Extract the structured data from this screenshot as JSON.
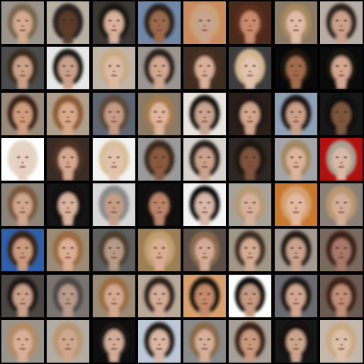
{
  "grid": {
    "rows": 8,
    "cols": 8,
    "background": "#000000",
    "tiles": [
      {
        "bg": "#9a948c",
        "hair": "#7a6650",
        "skin": "#d2a98e"
      },
      {
        "bg": "#b9b0a4",
        "hair": "#2a2420",
        "skin": "#5a3a2a"
      },
      {
        "bg": "#3a3634",
        "hair": "#161210",
        "skin": "#d6b09a"
      },
      {
        "bg": "#6f88a8",
        "hair": "#2a221c",
        "skin": "#9a6a4e"
      },
      {
        "bg": "#c98a5e",
        "hair": "#c9a27a",
        "skin": "#c7a28c"
      },
      {
        "bg": "#4a2a1c",
        "hair": "#5a2e1a",
        "skin": "#c98a6c"
      },
      {
        "bg": "#8a7a66",
        "hair": "#a8885e",
        "skin": "#e0bca6"
      },
      {
        "bg": "#b7ada4",
        "hair": "#2e241c",
        "skin": "#c9a08a"
      },
      {
        "bg": "#4b4b4b",
        "hair": "#3a2a1e",
        "skin": "#c9a088"
      },
      {
        "bg": "#e7e7e7",
        "hair": "#1f1b18",
        "skin": "#caa08a"
      },
      {
        "bg": "#bfb4a6",
        "hair": "#c7ab84",
        "skin": "#ddb9a3"
      },
      {
        "bg": "#9a9590",
        "hair": "#2a221e",
        "skin": "#d2a790"
      },
      {
        "bg": "#3d2c22",
        "hair": "#4a2e1e",
        "skin": "#d7ae98"
      },
      {
        "bg": "#3c3c3c",
        "hair": "#d2b690",
        "skin": "#e2c1ad"
      },
      {
        "bg": "#080808",
        "hair": "#1a1410",
        "skin": "#a06a4e"
      },
      {
        "bg": "#0b0b0b",
        "hair": "#18120e",
        "skin": "#d3a690"
      },
      {
        "bg": "#9a8a7a",
        "hair": "#3a2418",
        "skin": "#cf9c7e"
      },
      {
        "bg": "#b0a08c",
        "hair": "#8e5a34",
        "skin": "#d6a988"
      },
      {
        "bg": "#5e6470",
        "hair": "#5a4a38",
        "skin": "#c59a84"
      },
      {
        "bg": "#8a7a66",
        "hair": "#a27a4e",
        "skin": "#ddb39a"
      },
      {
        "bg": "#e9e4de",
        "hair": "#161210",
        "skin": "#c9a38f"
      },
      {
        "bg": "#2a1e1a",
        "hair": "#221812",
        "skin": "#d1a48c"
      },
      {
        "bg": "#8ea0b4",
        "hair": "#1e1814",
        "skin": "#c99f87"
      },
      {
        "bg": "#161616",
        "hair": "#0f0d0c",
        "skin": "#7c553c"
      },
      {
        "bg": "#ffffff",
        "hair": "#e3d6c4",
        "skin": "#e7d0c2"
      },
      {
        "bg": "#3a2c24",
        "hair": "#4e3020",
        "skin": "#d4a78f"
      },
      {
        "bg": "#f2f2f2",
        "hair": "#d7c09a",
        "skin": "#e3c2ad"
      },
      {
        "bg": "#9a9a9a",
        "hair": "#3a2a1e",
        "skin": "#8a5a40"
      },
      {
        "bg": "#d8d2cc",
        "hair": "#2a221c",
        "skin": "#c9a18c"
      },
      {
        "bg": "#2e2622",
        "hair": "#1c1510",
        "skin": "#7d523c"
      },
      {
        "bg": "#a4a4a8",
        "hair": "#a2885e",
        "skin": "#d9b39b"
      },
      {
        "bg": "#b01010",
        "hair": "#a8a08e",
        "skin": "#d9b8a6"
      },
      {
        "bg": "#8d8479",
        "hair": "#7a5a3e",
        "skin": "#cfa58c"
      },
      {
        "bg": "#141414",
        "hair": "#120f0e",
        "skin": "#d8b29e"
      },
      {
        "bg": "#d7d7d7",
        "hair": "#8a8a8a",
        "skin": "#c49c86"
      },
      {
        "bg": "#0f0f0f",
        "hair": "#140f0c",
        "skin": "#b9846a"
      },
      {
        "bg": "#f4f4f4",
        "hair": "#0d0b0a",
        "skin": "#d7b7a7"
      },
      {
        "bg": "#a8a199",
        "hair": "#b59a74",
        "skin": "#d7b09a"
      },
      {
        "bg": "#c8782e",
        "hair": "#d4a072",
        "skin": "#e2b89e"
      },
      {
        "bg": "#8a8076",
        "hair": "#b8966e",
        "skin": "#d3ad97"
      },
      {
        "bg": "#2e5fa8",
        "hair": "#3a2418",
        "skin": "#c99a7e"
      },
      {
        "bg": "#9a8a76",
        "hair": "#9a6a40",
        "skin": "#dbad92"
      },
      {
        "bg": "#5e5e5e",
        "hair": "#4e3e2e",
        "skin": "#b69a86"
      },
      {
        "bg": "#9e7e56",
        "hair": "#c0a070",
        "skin": "#d9ae90"
      },
      {
        "bg": "#5a4e46",
        "hair": "#8a6a4e",
        "skin": "#d4ab94"
      },
      {
        "bg": "#a09686",
        "hair": "#3e2e22",
        "skin": "#d3aa92"
      },
      {
        "bg": "#a39990",
        "hair": "#201a16",
        "skin": "#c9a18a"
      },
      {
        "bg": "#7a6a5e",
        "hair": "#3a2418",
        "skin": "#a8786a"
      },
      {
        "bg": "#4a4642",
        "hair": "#1c1612",
        "skin": "#c9a08a"
      },
      {
        "bg": "#7a7470",
        "hair": "#4e4a46",
        "skin": "#b79a8a"
      },
      {
        "bg": "#9a8a76",
        "hair": "#9a6c40",
        "skin": "#d4a88e"
      },
      {
        "bg": "#b7a898",
        "hair": "#2e221a",
        "skin": "#d4ab94"
      },
      {
        "bg": "#d9a06e",
        "hair": "#1a1410",
        "skin": "#c28a6a"
      },
      {
        "bg": "#ffffff",
        "hair": "#0f0c0a",
        "skin": "#c49a82"
      },
      {
        "bg": "#6a6a6e",
        "hair": "#1c1816",
        "skin": "#cfa690"
      },
      {
        "bg": "#6a5a52",
        "hair": "#3e2418",
        "skin": "#c08e78"
      },
      {
        "bg": "#9a948a",
        "hair": "#b48a62",
        "skin": "#d8b09a"
      },
      {
        "bg": "#b5aca2",
        "hair": "#b89674",
        "skin": "#cfa78e"
      },
      {
        "bg": "#0e0e0e",
        "hair": "#1a1412",
        "skin": "#d2ac98"
      },
      {
        "bg": "#bcc8d8",
        "hair": "#231c18",
        "skin": "#d9b6a4"
      },
      {
        "bg": "#8a8a8a",
        "hair": "#8a6a48",
        "skin": "#d5ae98"
      },
      {
        "bg": "#a8a098",
        "hair": "#3a2418",
        "skin": "#c9997e"
      },
      {
        "bg": "#161616",
        "hair": "#141110",
        "skin": "#cba48e"
      },
      {
        "bg": "#c4b8ac",
        "hair": "#c8aa84",
        "skin": "#dcc0aa"
      }
    ]
  }
}
